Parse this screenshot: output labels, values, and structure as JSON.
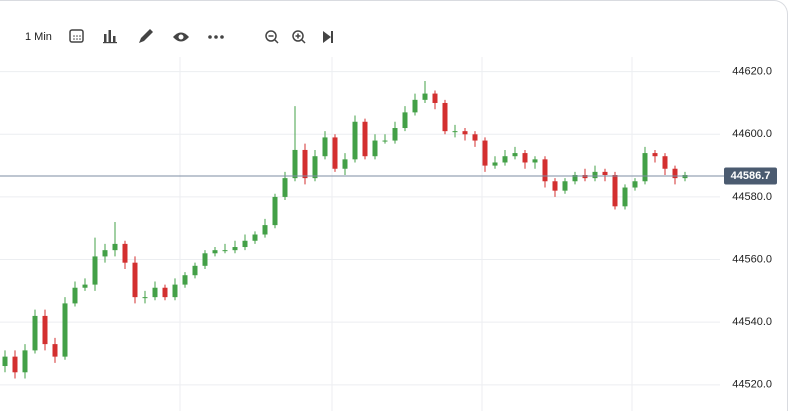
{
  "toolbar": {
    "interval": "1 Min"
  },
  "chart_data": {
    "type": "candlestick",
    "open": [
      44526,
      44529,
      44524,
      44531,
      44542,
      44533,
      44529,
      44546,
      44551,
      44552,
      44561,
      44563,
      44565,
      44559,
      44548,
      44548,
      44551,
      44548,
      44552,
      44555,
      44558,
      44562,
      44563,
      44563,
      44564,
      44566,
      44568,
      44571,
      44580,
      44586,
      44595,
      44586,
      44593,
      44599,
      44589,
      44592,
      44604,
      44593,
      44598,
      44598,
      44602,
      44607,
      44611,
      44613,
      44610,
      44601,
      44601,
      44600,
      44598,
      44590,
      44591,
      44593,
      44594,
      44591,
      44592,
      44585,
      44582,
      44585,
      44587,
      44586,
      44588,
      44587,
      44577,
      44583,
      44585,
      44594,
      44593,
      44589,
      44586
    ],
    "high": [
      44531,
      44531,
      44533,
      44544,
      44544,
      44535,
      44548,
      44553,
      44554,
      44567,
      44565,
      44572,
      44566,
      44561,
      44550,
      44553,
      44552,
      44554,
      44556,
      44559,
      44563,
      44564,
      44565,
      44566,
      44568,
      44569,
      44573,
      44581,
      44588,
      44609,
      44597,
      44595,
      44601,
      44600,
      44594,
      44606,
      44605,
      44600,
      44600,
      44604,
      44609,
      44613,
      44617,
      44614,
      44611,
      44603,
      44602,
      44601,
      44599,
      44593,
      44595,
      44596,
      44595,
      44593,
      44593,
      44586,
      44586,
      44588,
      44589,
      44590,
      44589,
      44588,
      44584,
      44586,
      44596,
      44595,
      44594,
      44590,
      44588
    ],
    "low": [
      44524,
      44522,
      44522,
      44530,
      44531,
      44527,
      44528,
      44545,
      44550,
      44550,
      44559,
      44561,
      44557,
      44546,
      44546,
      44547,
      44547,
      44547,
      44551,
      44554,
      44557,
      44561,
      44562,
      44562,
      44563,
      44565,
      44567,
      44570,
      44579,
      44585,
      44584,
      44585,
      44592,
      44588,
      44587,
      44591,
      44592,
      44592,
      44597,
      44597,
      44601,
      44606,
      44610,
      44608,
      44600,
      44599,
      44598,
      44596,
      44588,
      44589,
      44590,
      44592,
      44589,
      44589,
      44583,
      44580,
      44581,
      44584,
      44585,
      44585,
      44585,
      44576,
      44576,
      44582,
      44584,
      44591,
      44587,
      44584,
      44585
    ],
    "close": [
      44529,
      44524,
      44531,
      44542,
      44533,
      44529,
      44546,
      44551,
      44552,
      44561,
      44563,
      44565,
      44559,
      44548,
      44548,
      44551,
      44548,
      44552,
      44555,
      44558,
      44562,
      44563,
      44563,
      44564,
      44566,
      44568,
      44571,
      44580,
      44586,
      44595,
      44586,
      44593,
      44599,
      44589,
      44592,
      44604,
      44593,
      44598,
      44598,
      44602,
      44607,
      44611,
      44613,
      44610,
      44601,
      44601,
      44600,
      44598,
      44590,
      44591,
      44593,
      44594,
      44591,
      44592,
      44585,
      44582,
      44585,
      44587,
      44586,
      44588,
      44587,
      44577,
      44583,
      44585,
      44594,
      44593,
      44589,
      44586,
      44587
    ],
    "up_color": "#43a047",
    "down_color": "#d32f2f",
    "ylim": [
      44511,
      44625
    ],
    "yticks": [
      {
        "value": 44520,
        "label": "44520.0"
      },
      {
        "value": 44540,
        "label": "44540.0"
      },
      {
        "value": 44560,
        "label": "44560.0"
      },
      {
        "value": 44580,
        "label": "44580.0"
      },
      {
        "value": 44600,
        "label": "44600.0"
      },
      {
        "value": 44620,
        "label": "44620.0"
      }
    ],
    "grid": true,
    "last_price": {
      "value": 44586.7,
      "label": "44586.7"
    }
  }
}
